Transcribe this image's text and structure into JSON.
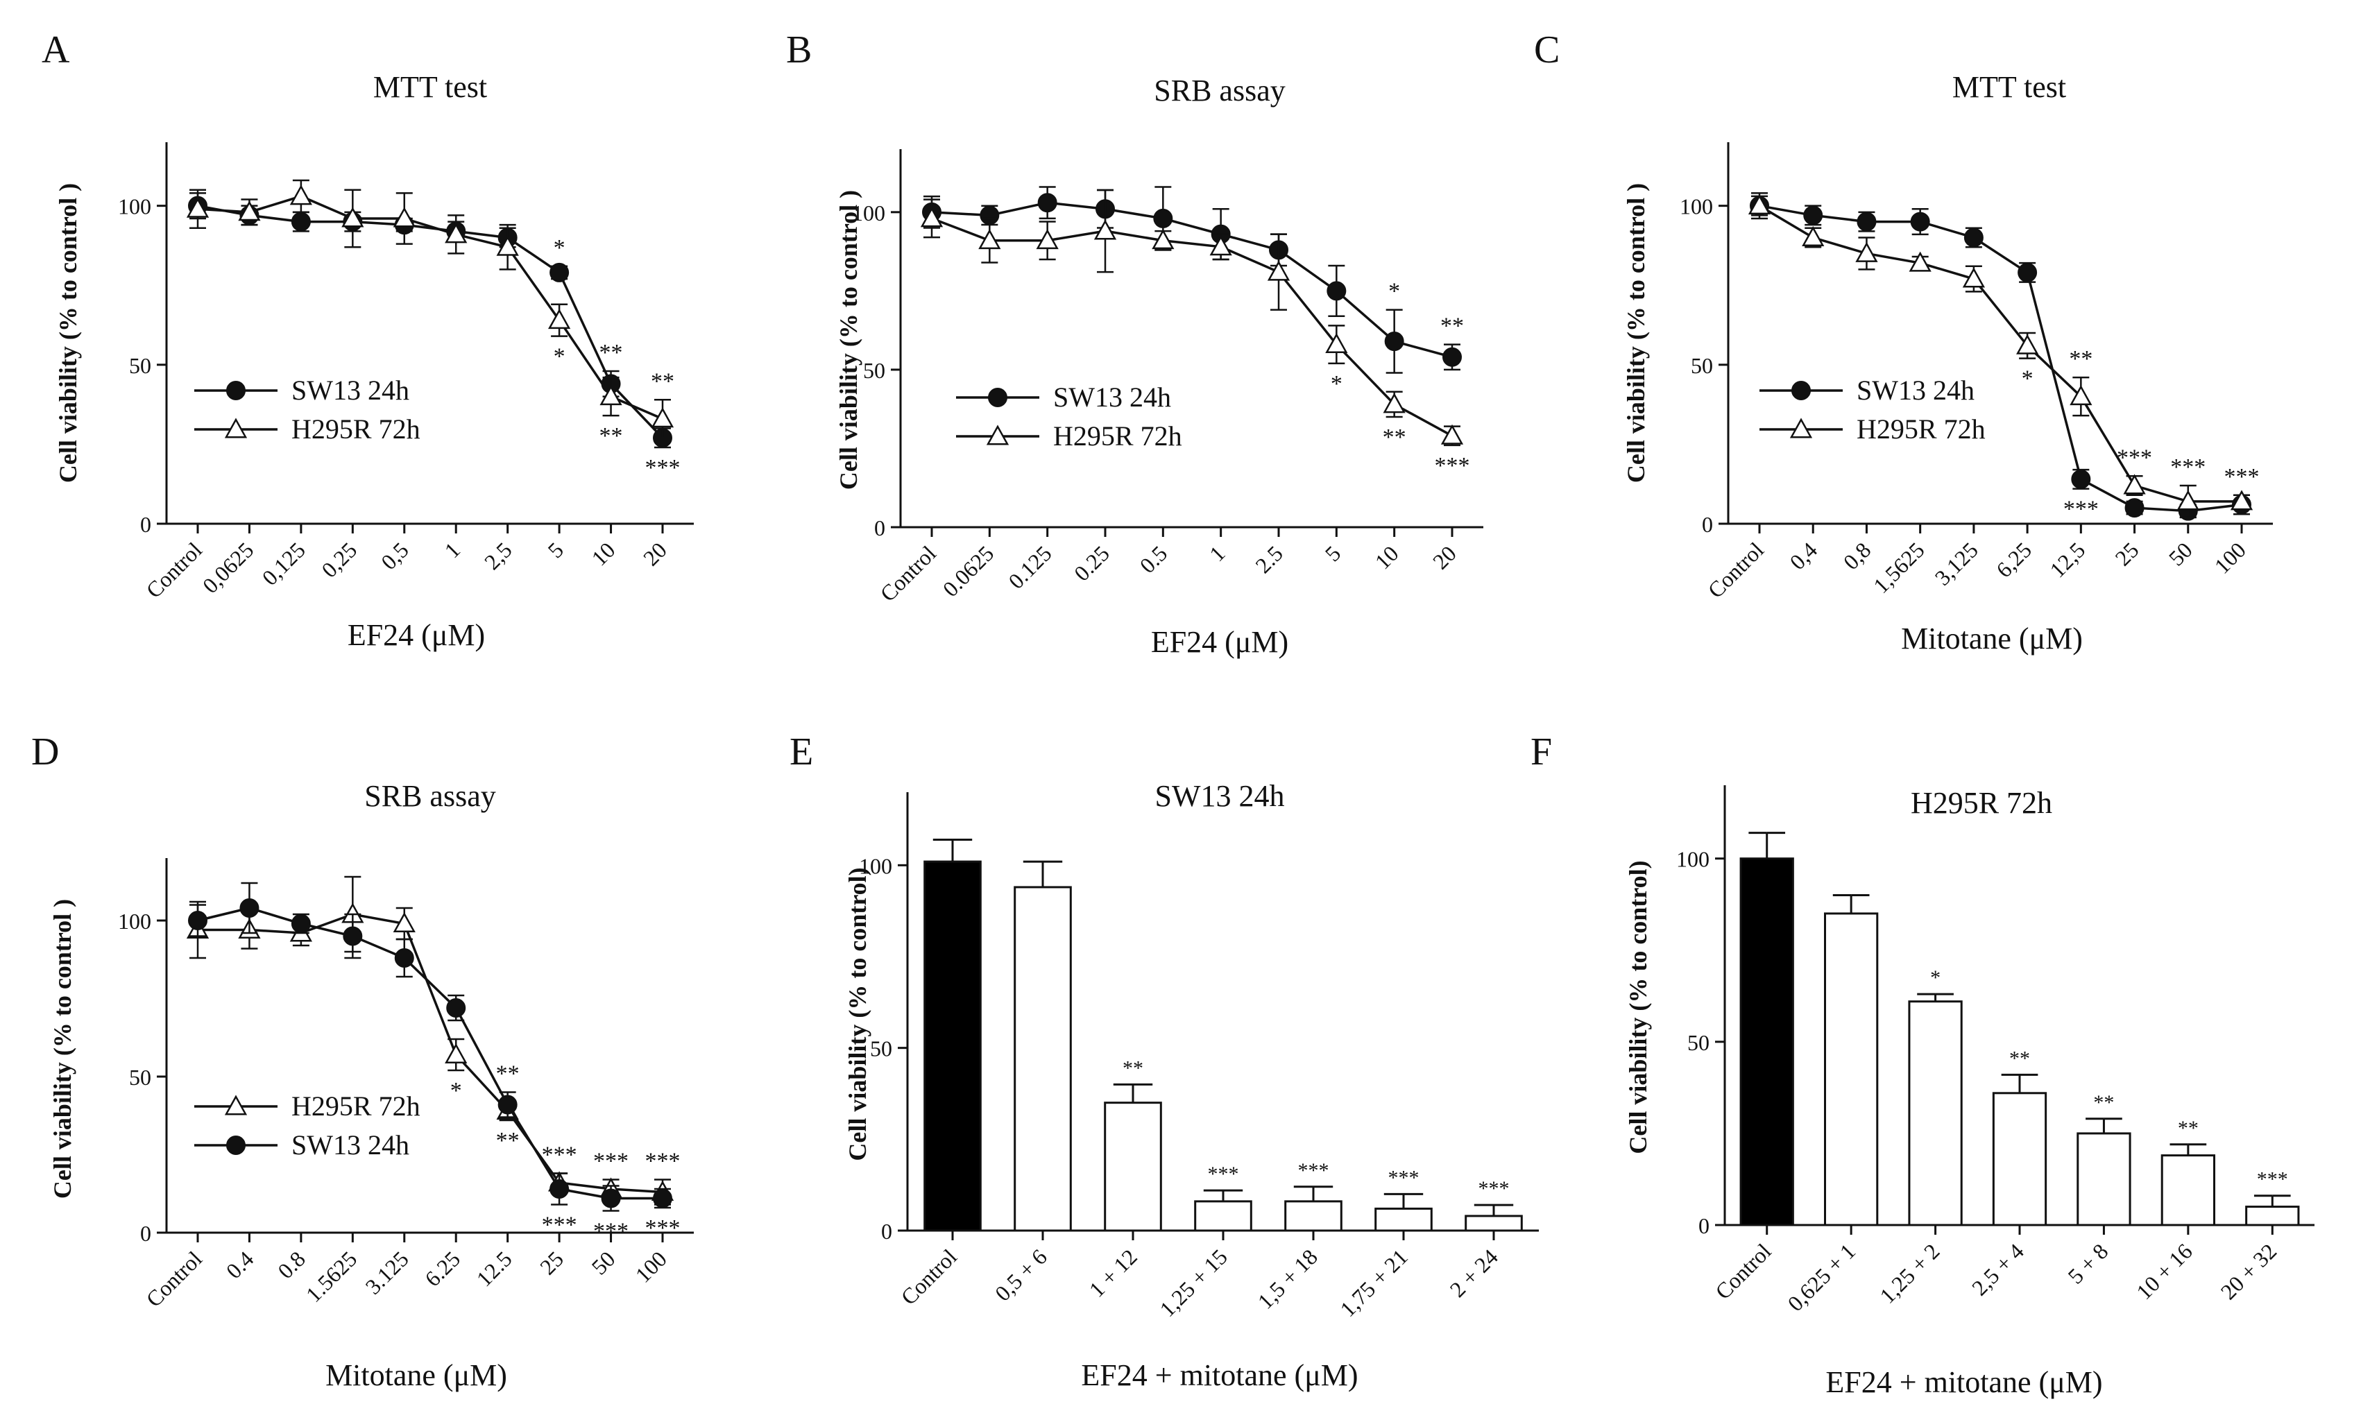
{
  "chart_data": [
    {
      "panel": "A",
      "type": "line",
      "title": "MTT test",
      "xlabel": "EF24 (μM)",
      "ylabel": "Cell viability (% to control )",
      "ylim": [
        0,
        120
      ],
      "yticks": [
        0,
        50,
        100
      ],
      "categories": [
        "Control",
        "0,0625",
        "0,125",
        "0,25",
        "0,5",
        "1",
        "2,5",
        "5",
        "10",
        "20"
      ],
      "series": [
        {
          "name": "SW13 24h",
          "marker": "filled-circle",
          "values": [
            100,
            97,
            95,
            95,
            94,
            92,
            90,
            79,
            44,
            27
          ],
          "errors": [
            4,
            3,
            3,
            3,
            2,
            3,
            3,
            2,
            4,
            3
          ],
          "stars": [
            "",
            "",
            "",
            "",
            "",
            "",
            "",
            "*",
            "**",
            "***"
          ]
        },
        {
          "name": "H295R 72h",
          "marker": "open-triangle",
          "values": [
            99,
            98,
            103,
            96,
            96,
            91,
            87,
            64,
            40,
            33
          ],
          "errors": [
            6,
            4,
            5,
            9,
            8,
            6,
            7,
            5,
            6,
            6
          ],
          "stars": [
            "",
            "",
            "",
            "",
            "",
            "",
            "",
            "*",
            "**",
            "**"
          ]
        }
      ],
      "legend": "bottom-left"
    },
    {
      "panel": "B",
      "type": "line",
      "title": "SRB assay",
      "xlabel": "EF24 (μM)",
      "ylabel": "Cell viability (% to control )",
      "ylim": [
        0,
        120
      ],
      "yticks": [
        0,
        50,
        100
      ],
      "categories": [
        "Control",
        "0.0625",
        "0.125",
        "0.25",
        "0.5",
        "1",
        "2.5",
        "5",
        "10",
        "20"
      ],
      "series": [
        {
          "name": "SW13 24h",
          "marker": "filled-circle",
          "values": [
            100,
            99,
            103,
            101,
            98,
            93,
            88,
            75,
            59,
            54
          ],
          "errors": [
            5,
            3,
            5,
            6,
            10,
            8,
            5,
            8,
            10,
            4
          ],
          "stars": [
            "",
            "",
            "",
            "",
            "",
            "",
            "",
            "",
            "*",
            "**"
          ]
        },
        {
          "name": "H295R 72h",
          "marker": "open-triangle",
          "values": [
            98,
            91,
            91,
            94,
            91,
            89,
            81,
            58,
            39,
            29
          ],
          "errors": [
            6,
            7,
            6,
            13,
            3,
            4,
            12,
            6,
            4,
            3
          ],
          "stars": [
            "",
            "",
            "",
            "",
            "",
            "",
            "",
            "*",
            "**",
            "***"
          ]
        }
      ],
      "legend": "bottom-left"
    },
    {
      "panel": "C",
      "type": "line",
      "title": "MTT test",
      "xlabel": "Mitotane (μM)",
      "ylabel": "Cell viability (% to control )",
      "ylim": [
        0,
        120
      ],
      "yticks": [
        0,
        50,
        100
      ],
      "categories": [
        "Control",
        "0,4",
        "0,8",
        "1,5625",
        "3,125",
        "6,25",
        "12,5",
        "25",
        "50",
        "100"
      ],
      "series": [
        {
          "name": "SW13 24h",
          "marker": "filled-circle",
          "values": [
            100,
            97,
            95,
            95,
            90,
            79,
            14,
            5,
            4,
            6
          ],
          "errors": [
            3,
            3,
            3,
            4,
            3,
            3,
            3,
            2,
            2,
            3
          ],
          "stars": [
            "",
            "",
            "",
            "",
            "",
            "",
            "***",
            "",
            "",
            ""
          ]
        },
        {
          "name": "H295R 72h",
          "marker": "open-triangle",
          "values": [
            100,
            90,
            85,
            82,
            77,
            56,
            40,
            12,
            7,
            7
          ],
          "errors": [
            4,
            3,
            5,
            2,
            4,
            4,
            6,
            3,
            5,
            2
          ],
          "stars": [
            "",
            "",
            "",
            "",
            "",
            "*",
            "**",
            "***",
            "***",
            "***"
          ]
        }
      ],
      "legend": "bottom-left"
    },
    {
      "panel": "D",
      "type": "line",
      "title": "SRB assay",
      "xlabel": "Mitotane (μM)",
      "ylabel": "Cell viability (% to control )",
      "ylim": [
        0,
        120
      ],
      "yticks": [
        0,
        50,
        100
      ],
      "categories": [
        "Control",
        "0.4",
        "0.8",
        "1.5625",
        "3.125",
        "6.25",
        "12.5",
        "25",
        "50",
        "100"
      ],
      "series": [
        {
          "name": "H295R 72h",
          "marker": "open-triangle",
          "values": [
            97,
            97,
            96,
            102,
            99,
            57,
            39,
            16,
            14,
            13
          ],
          "errors": [
            9,
            6,
            4,
            12,
            5,
            5,
            3,
            3,
            3,
            4
          ],
          "stars": [
            "",
            "",
            "",
            "",
            "",
            "*",
            "**",
            "***",
            "***",
            "***"
          ]
        },
        {
          "name": "SW13 24h",
          "marker": "filled-circle",
          "values": [
            100,
            104,
            99,
            95,
            88,
            72,
            41,
            14,
            11,
            11
          ],
          "errors": [
            5,
            8,
            3,
            7,
            6,
            4,
            4,
            5,
            4,
            3
          ],
          "stars": [
            "",
            "",
            "",
            "",
            "",
            "",
            "**",
            "***",
            "***",
            "***"
          ]
        }
      ],
      "legend": "bottom-left"
    },
    {
      "panel": "E",
      "type": "bar",
      "title": "SW13 24h",
      "xlabel": "EF24 + mitotane (μM)",
      "ylabel": "Cell viability (% to control)",
      "ylim": [
        0,
        120
      ],
      "yticks": [
        0,
        50,
        100
      ],
      "categories": [
        "Control",
        "0,5 + 6",
        "1 + 12",
        "1,25 + 15",
        "1,5 + 18",
        "1,75 + 21",
        "2 + 24"
      ],
      "values": [
        101,
        94,
        35,
        8,
        8,
        6,
        4
      ],
      "errors": [
        6,
        7,
        5,
        3,
        4,
        4,
        3
      ],
      "fills": [
        "#000000",
        "#ffffff",
        "#ffffff",
        "#ffffff",
        "#ffffff",
        "#ffffff",
        "#ffffff"
      ],
      "stars": [
        "",
        "",
        "**",
        "***",
        "***",
        "***",
        "***"
      ]
    },
    {
      "panel": "F",
      "type": "bar",
      "title": "H295R 72h",
      "xlabel": "EF24 + mitotane (μM)",
      "ylabel": "Cell viability (% to control)",
      "ylim": [
        0,
        120
      ],
      "yticks": [
        0,
        50,
        100
      ],
      "categories": [
        "Control",
        "0,625 + 1",
        "1,25 + 2",
        "2,5 + 4",
        "5 + 8",
        "10 + 16",
        "20 + 32"
      ],
      "values": [
        100,
        85,
        61,
        36,
        25,
        19,
        5
      ],
      "errors": [
        7,
        5,
        2,
        5,
        4,
        3,
        3
      ],
      "fills": [
        "#000000",
        "#ffffff",
        "#ffffff",
        "#ffffff",
        "#ffffff",
        "#ffffff",
        "#ffffff"
      ],
      "stars": [
        "",
        "",
        "*",
        "**",
        "**",
        "**",
        "***"
      ]
    }
  ],
  "colors": {
    "ink": "#111111",
    "bar_control": "#000000",
    "bar_other": "#ffffff"
  }
}
